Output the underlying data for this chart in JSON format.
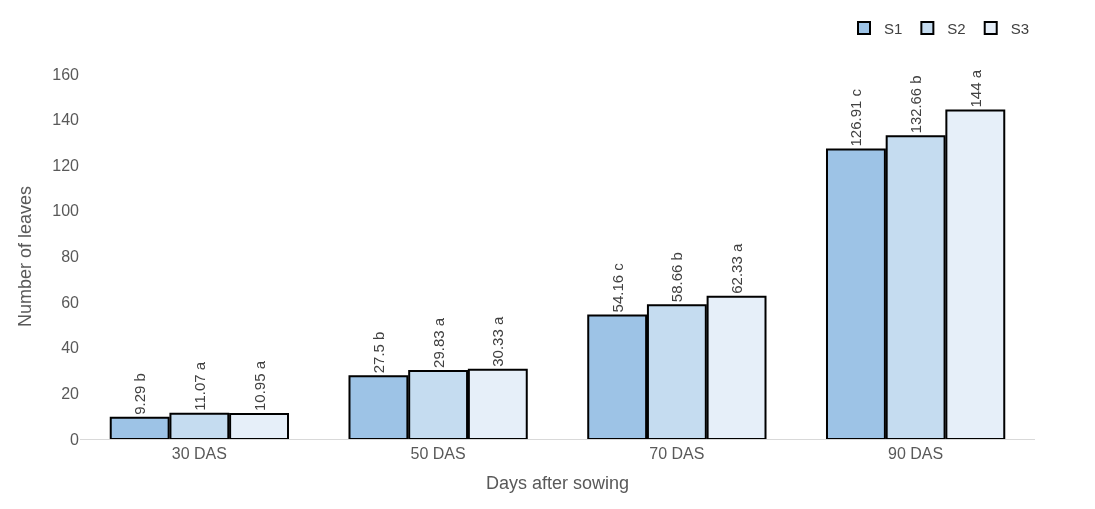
{
  "chart_data": {
    "type": "bar",
    "xlabel": "Days after sowing",
    "ylabel": "Number of leaves",
    "categories": [
      "30 DAS",
      "50 DAS",
      "70 DAS",
      "90 DAS"
    ],
    "series": [
      {
        "name": "S1",
        "color": "#9dc3e6",
        "values": [
          9.29,
          27.5,
          54.16,
          126.91
        ],
        "value_labels": [
          "9.29 b",
          "27.5 b",
          "54.16 c",
          "126.91 c"
        ]
      },
      {
        "name": "S2",
        "color": "#c5dcf0",
        "values": [
          11.07,
          29.83,
          58.66,
          132.66
        ],
        "value_labels": [
          "11.07 a",
          "29.83 a",
          "58.66 b",
          "132.66 b"
        ]
      },
      {
        "name": "S3",
        "color": "#e6eff9",
        "values": [
          10.95,
          30.33,
          62.33,
          144
        ],
        "value_labels": [
          "10.95 a",
          "30.33 a",
          "62.33 a",
          "144 a"
        ]
      }
    ],
    "ylim": [
      0,
      160
    ],
    "yticks": [
      0,
      20,
      40,
      60,
      80,
      100,
      120,
      140,
      160
    ],
    "grid": false,
    "legend": "top right"
  }
}
